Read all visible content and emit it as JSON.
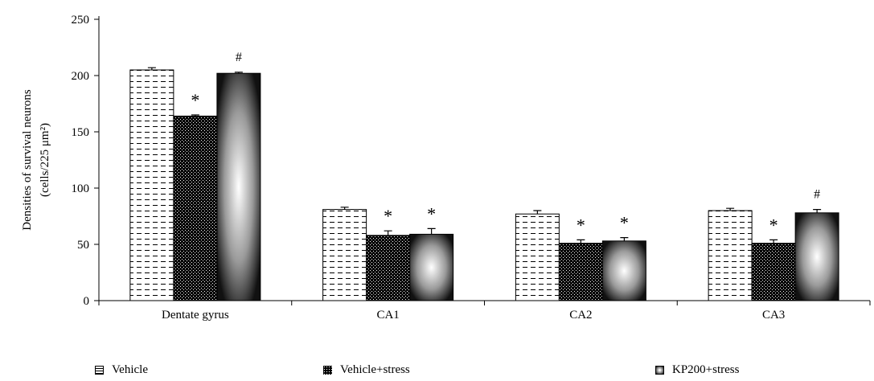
{
  "chart_data": {
    "type": "bar",
    "ylabel_line1": "Densities of survival neurons",
    "ylabel_line2": "(cells/225 μm²)",
    "ylim": [
      0,
      250
    ],
    "yticks": [
      0,
      50,
      100,
      150,
      200,
      250
    ],
    "categories": [
      "Dentate gyrus",
      "CA1",
      "CA2",
      "CA3"
    ],
    "series": [
      {
        "name": "Vehicle",
        "values": [
          205,
          81,
          77,
          80
        ],
        "errors": [
          2,
          2,
          3,
          2
        ]
      },
      {
        "name": "Vehicle+stress",
        "values": [
          164,
          58,
          51,
          51
        ],
        "errors": [
          1,
          4,
          3,
          3
        ]
      },
      {
        "name": "KP200+stress",
        "values": [
          202,
          59,
          53,
          78
        ],
        "errors": [
          1,
          5,
          3,
          3
        ]
      }
    ],
    "annotations": [
      [
        "",
        "*",
        "#"
      ],
      [
        "",
        "*",
        "*"
      ],
      [
        "",
        "*",
        "*"
      ],
      [
        "",
        "*",
        "#"
      ]
    ],
    "grid": false,
    "legend_position": "bottom"
  }
}
